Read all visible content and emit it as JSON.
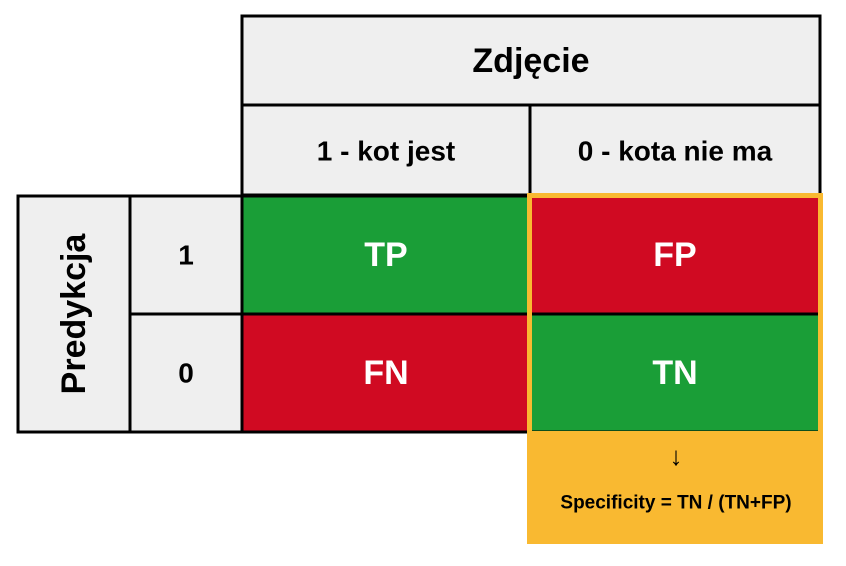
{
  "header": {
    "title": "Zdjęcie",
    "columns": [
      "1 - kot jest",
      "0 - kota nie ma"
    ]
  },
  "row_header": "Predykcja",
  "rows": [
    "1",
    "0"
  ],
  "cells": [
    [
      "TP",
      "FP"
    ],
    [
      "FN",
      "TN"
    ]
  ],
  "highlight": {
    "arrow": "↓",
    "formula": "Specificity = TN / (TN+FP)"
  }
}
